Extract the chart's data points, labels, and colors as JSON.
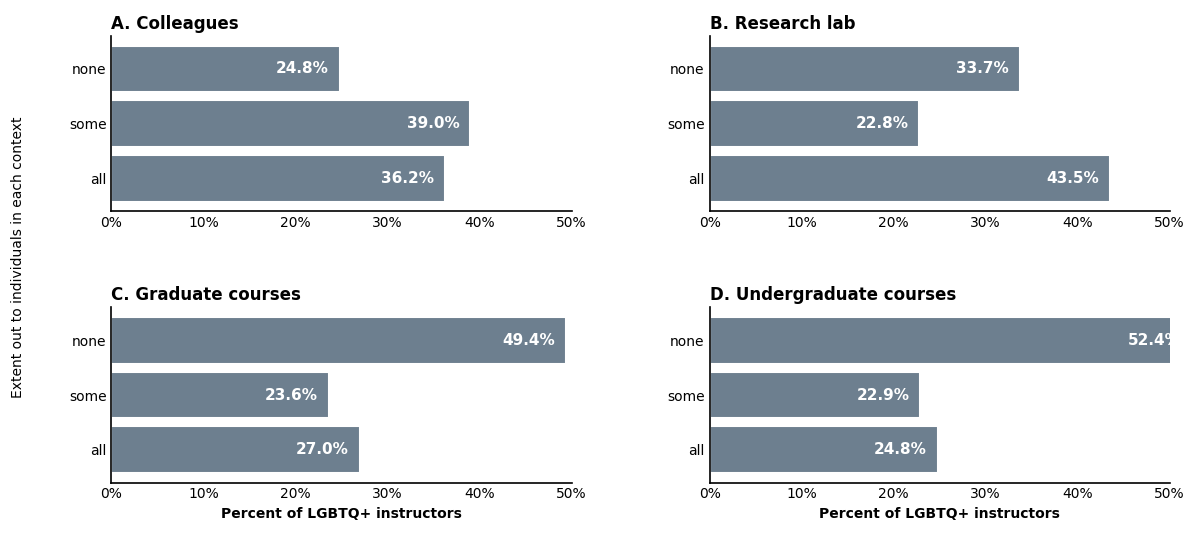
{
  "panels": [
    {
      "title": "A. Colleagues",
      "categories": [
        "none",
        "some",
        "all"
      ],
      "values": [
        24.8,
        39.0,
        36.2
      ],
      "xlim": [
        0,
        50
      ]
    },
    {
      "title": "B. Research lab",
      "categories": [
        "none",
        "some",
        "all"
      ],
      "values": [
        33.7,
        22.8,
        43.5
      ],
      "xlim": [
        0,
        50
      ]
    },
    {
      "title": "C. Graduate courses",
      "categories": [
        "none",
        "some",
        "all"
      ],
      "values": [
        49.4,
        23.6,
        27.0
      ],
      "xlim": [
        0,
        50
      ]
    },
    {
      "title": "D. Undergraduate courses",
      "categories": [
        "none",
        "some",
        "all"
      ],
      "values": [
        52.4,
        22.9,
        24.8
      ],
      "xlim": [
        0,
        50
      ]
    }
  ],
  "bar_color": "#6d7f8f",
  "bar_edge_color": "white",
  "text_color": "white",
  "label_fontsize": 11,
  "title_fontsize": 12,
  "tick_fontsize": 10,
  "ylabel": "Extent out to individuals in each context",
  "xlabel": "Percent of LGBTQ+ instructors",
  "xticks": [
    0,
    10,
    20,
    30,
    40,
    50
  ],
  "xtick_labels": [
    "0%",
    "10%",
    "20%",
    "30%",
    "40%",
    "50%"
  ],
  "background_color": "#ffffff"
}
